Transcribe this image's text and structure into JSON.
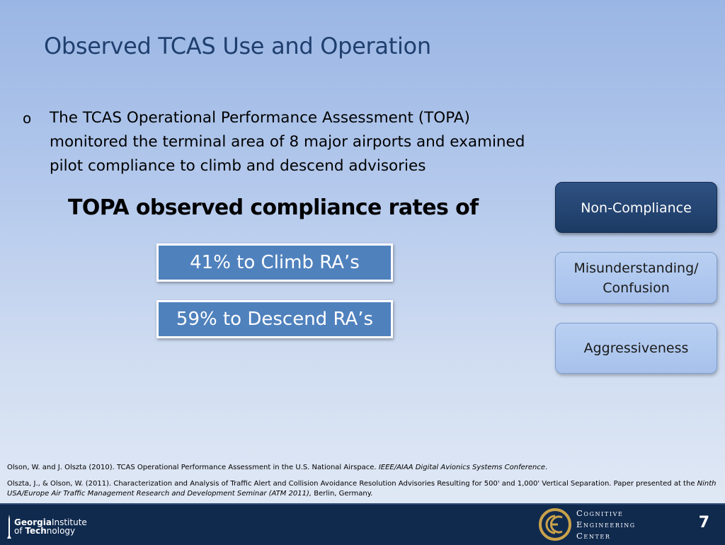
{
  "slide": {
    "title": "Observed TCAS Use and Operation",
    "bullet": {
      "marker": "o",
      "text": "The TCAS Operational Performance Assessment (TOPA) monitored the terminal area of 8 major airports and examined pilot compliance to climb and descend advisories"
    },
    "subheading": "TOPA observed compliance rates of",
    "rates": [
      "41% to Climb RA’s",
      "59% to Descend RA’s"
    ],
    "side_buttons": [
      "Non-Compliance",
      "Misunderstanding/ Confusion",
      "Aggressiveness"
    ],
    "references": [
      {
        "text": "Olson, W. and J. Olszta (2010). TCAS Operational Performance Assessment in the U.S. National Airspace. ",
        "italic": "IEEE/AIAA Digital Avionics Systems Conference",
        "tail": "."
      },
      {
        "text": "Olszta, J., & Olson, W. (2011). Characterization and Analysis of Traffic Alert and Collision Avoidance Resolution Advisories Resulting for 500' and 1,000' Vertical Separation. Paper presented at the ",
        "italic": "Ninth USA/Europe Air Traffic Management Research and Development Seminar (ATM 2011),",
        "tail": " Berlin, Germany."
      }
    ]
  },
  "footer": {
    "gt_logo": {
      "line1_bold": "Georgia",
      "line1_thin": "Institute",
      "line2_thin": "of ",
      "line2_bold": "Tech",
      "line2_tail": "nology"
    },
    "cec_logo": {
      "lines": [
        "Cognitive",
        "Engineering",
        "Center"
      ]
    },
    "page_number": "7"
  },
  "colors": {
    "title": "#1f3f6e",
    "rate_box": "#4f81bd",
    "active_button": "#1c3a64",
    "light_button": "#b9d0f2",
    "footer": "#102a4e",
    "cec_gold": "#c9a24a"
  }
}
